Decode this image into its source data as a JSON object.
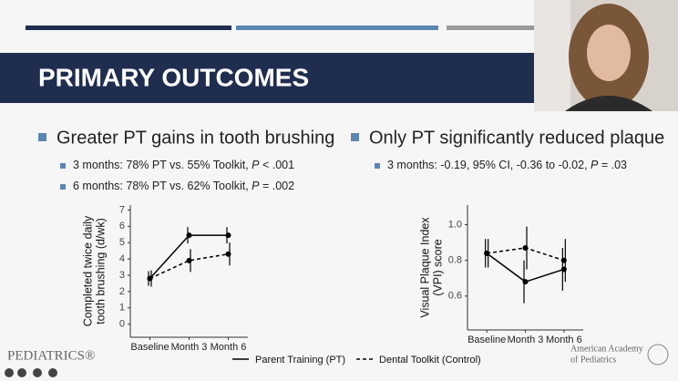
{
  "slide": {
    "title": "PRIMARY OUTCOMES",
    "left_bullet": {
      "text": "Greater PT gains in tooth brushing",
      "subs": [
        {
          "lead": "3 months: 78% PT vs. 55% Toolkit, ",
          "p": "P",
          "tail": " < .001"
        },
        {
          "lead": "6 months: 78% PT vs. 62% Toolkit, ",
          "p": "P",
          "tail": " = .002"
        }
      ]
    },
    "right_bullet": {
      "text": "Only PT significantly reduced plaque",
      "subs": [
        {
          "lead": "3 months: -0.19, 95% CI, -0.36 to -0.02, ",
          "p": "P",
          "tail": " = .03"
        }
      ]
    },
    "footer_left": "PEDIATRICS®",
    "footer_right": [
      "American Academy",
      "of Pediatrics"
    ]
  },
  "chart_data": [
    {
      "type": "line",
      "y_label": [
        "Completed twice daily",
        "tooth brushing (d/wk)"
      ],
      "categories": [
        "Baseline",
        "Month 3",
        "Month 6"
      ],
      "ylim": [
        -0.8,
        7.3
      ],
      "yticks": [
        0,
        1,
        2,
        3,
        4,
        5,
        6,
        7
      ],
      "series": [
        {
          "name": "Parent Training (PT)",
          "color": "#000000",
          "dash": false,
          "values": [
            2.8,
            5.45,
            5.45
          ],
          "errors": [
            0.45,
            0.5,
            0.5
          ]
        },
        {
          "name": "Dental Toolkit (Control)",
          "color": "#000000",
          "dash": true,
          "values": [
            2.8,
            3.9,
            4.3
          ],
          "errors": [
            0.5,
            0.7,
            0.7
          ]
        }
      ]
    },
    {
      "type": "line",
      "y_label": [
        "Visual Plaque Index",
        "(VPI) score"
      ],
      "categories": [
        "Baseline",
        "Month 3",
        "Month 6"
      ],
      "ylim": [
        0.41,
        1.11
      ],
      "yticks": [
        0.6,
        0.8,
        {
          "value": 1,
          "label": "1.0"
        }
      ],
      "series": [
        {
          "color": "#000000",
          "dash": false,
          "values": [
            0.84,
            0.68,
            0.75
          ],
          "errors": [
            0.08,
            0.12,
            0.12
          ]
        },
        {
          "color": "#000000",
          "dash": true,
          "values": [
            0.84,
            0.87,
            0.8
          ],
          "errors": [
            0.08,
            0.12,
            0.12
          ]
        }
      ]
    }
  ]
}
